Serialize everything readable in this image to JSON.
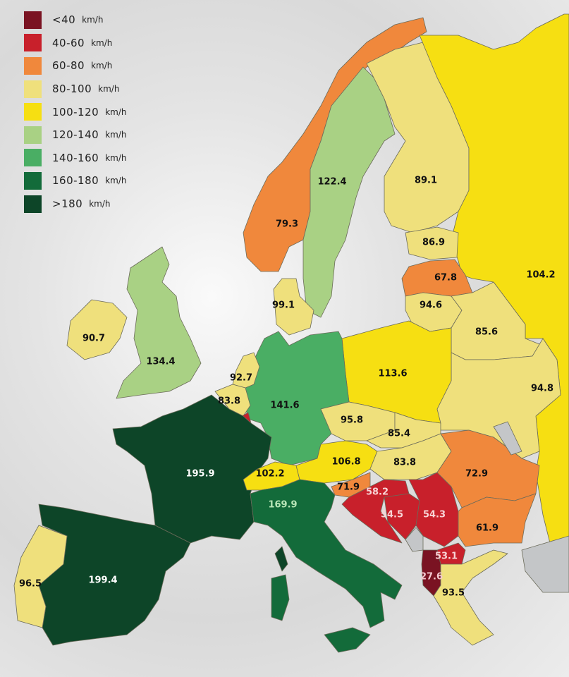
{
  "legend": {
    "unit": "km/h",
    "items": [
      {
        "range": "<40",
        "color": "#7a1322"
      },
      {
        "range": "40-60",
        "color": "#c8202b"
      },
      {
        "range": "60-80",
        "color": "#f0883c"
      },
      {
        "range": "80-100",
        "color": "#efe07c"
      },
      {
        "range": "100-120",
        "color": "#f6df12"
      },
      {
        "range": "120-140",
        "color": "#a9d184"
      },
      {
        "range": "140-160",
        "color": "#4aae64"
      },
      {
        "range": "160-180",
        "color": "#136b3a"
      },
      {
        "range": ">180",
        "color": "#0d4528"
      }
    ]
  },
  "map": {
    "no_data_color": "#c4c6c8",
    "regions": [
      {
        "value": "79.3",
        "class": 2
      },
      {
        "value": "122.4",
        "class": 5
      },
      {
        "value": "89.1",
        "class": 3
      },
      {
        "value": "104.2",
        "class": 4
      },
      {
        "value": "86.9",
        "class": 3
      },
      {
        "value": "67.8",
        "class": 2
      },
      {
        "value": "94.6",
        "class": 3
      },
      {
        "value": "85.6",
        "class": 3
      },
      {
        "value": "94.8",
        "class": 3
      },
      {
        "value": "113.6",
        "class": 4
      },
      {
        "value": "141.6",
        "class": 6
      },
      {
        "value": "99.1",
        "class": 3
      },
      {
        "value": "92.7",
        "class": 3
      },
      {
        "value": "83.8",
        "class": 3
      },
      {
        "value": "",
        "class": 1
      },
      {
        "value": "195.9",
        "class": 8
      },
      {
        "value": "199.4",
        "class": 8
      },
      {
        "value": "96.5",
        "class": 3
      },
      {
        "value": "134.4",
        "class": 5
      },
      {
        "value": "90.7",
        "class": 3
      },
      {
        "value": "102.2",
        "class": 4
      },
      {
        "value": "106.8",
        "class": 4
      },
      {
        "value": "95.8",
        "class": 3
      },
      {
        "value": "85.4",
        "class": 3
      },
      {
        "value": "83.8",
        "class": 3
      },
      {
        "value": "71.9",
        "class": 2
      },
      {
        "value": "58.2",
        "class": 1
      },
      {
        "value": "54.5",
        "class": 1
      },
      {
        "value": "54.3",
        "class": 1
      },
      {
        "value": "72.9",
        "class": 2
      },
      {
        "value": "61.9",
        "class": 2
      },
      {
        "value": "53.1",
        "class": 1
      },
      {
        "value": "27.6",
        "class": 0
      },
      {
        "value": "93.5",
        "class": 3
      },
      {
        "value": "169.9",
        "class": 7
      }
    ]
  }
}
